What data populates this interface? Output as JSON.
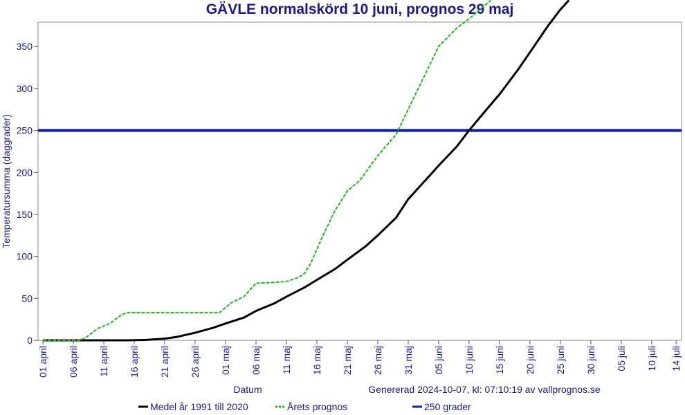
{
  "chart_data": {
    "type": "line",
    "title": "GÄVLE normalskörd 10 juni, prognos 29 maj",
    "y_label": "Temperatursumma (daggrader)",
    "x_label": "Datum",
    "note": "Genererad 2024-10-07, kl: 07:10:19 av vallprognos.se",
    "xlim": [
      -0.8,
      104.9
    ],
    "ylim": [
      0,
      379
    ],
    "yticks": [
      0,
      50,
      100,
      150,
      200,
      250,
      300,
      350
    ],
    "xticks": [
      {
        "value": 0,
        "label": "01 april"
      },
      {
        "value": 5,
        "label": "06 april"
      },
      {
        "value": 10,
        "label": "11 april"
      },
      {
        "value": 15,
        "label": "16 april"
      },
      {
        "value": 20,
        "label": "21 april"
      },
      {
        "value": 25,
        "label": "26 april"
      },
      {
        "value": 30,
        "label": "01 maj"
      },
      {
        "value": 35,
        "label": "06 maj"
      },
      {
        "value": 40,
        "label": "11 maj"
      },
      {
        "value": 45,
        "label": "16 maj"
      },
      {
        "value": 50,
        "label": "21 maj"
      },
      {
        "value": 55,
        "label": "26 maj"
      },
      {
        "value": 60,
        "label": "31 maj"
      },
      {
        "value": 65,
        "label": "05 juni"
      },
      {
        "value": 70,
        "label": "10 juni"
      },
      {
        "value": 75,
        "label": "15 juni"
      },
      {
        "value": 80,
        "label": "20 juni"
      },
      {
        "value": 85,
        "label": "25 juni"
      },
      {
        "value": 90,
        "label": "30 juni"
      },
      {
        "value": 95,
        "label": "05 juli"
      },
      {
        "value": 100,
        "label": "10 juli"
      },
      {
        "value": 104,
        "label": "14 juli"
      }
    ],
    "series": [
      {
        "name": "Medel år 1991 till 2020",
        "color": "#000000",
        "width": 3,
        "x": [
          0,
          5,
          10,
          14,
          17,
          20,
          22,
          25,
          28,
          30,
          33,
          35,
          38,
          40,
          43,
          45,
          48,
          50,
          53,
          55,
          58,
          60,
          63,
          65,
          68,
          70,
          73,
          75,
          78,
          80,
          83,
          85,
          86.4
        ],
        "values": [
          0,
          0,
          0,
          0,
          0.5,
          2,
          4,
          9,
          15,
          20,
          27,
          35,
          44,
          52,
          63,
          72,
          85,
          96,
          112,
          125,
          146,
          168,
          192,
          208,
          231,
          250,
          276,
          293,
          322,
          343,
          375,
          394,
          405
        ]
      },
      {
        "name": "Årets prognos",
        "color": "#22b522",
        "width": 2,
        "dash": "5,2",
        "x": [
          0,
          6,
          7,
          9,
          11,
          13,
          14,
          20,
          25,
          29,
          31,
          33,
          34,
          35,
          38,
          40,
          42,
          43,
          44,
          46,
          48,
          50,
          52,
          55,
          58,
          60,
          62,
          65,
          68,
          70,
          73.6
        ],
        "values": [
          0,
          0,
          3,
          14,
          20,
          31,
          33,
          33,
          33,
          33,
          45,
          52,
          60,
          68,
          69,
          70,
          75,
          80,
          92,
          125,
          155,
          178,
          190,
          220,
          245,
          275,
          305,
          350,
          372,
          383,
          405
        ]
      },
      {
        "name": "250 grader",
        "color": "#0a1fa8",
        "width": 4,
        "x": [
          -0.8,
          104.9
        ],
        "values": [
          250,
          250
        ]
      }
    ]
  }
}
